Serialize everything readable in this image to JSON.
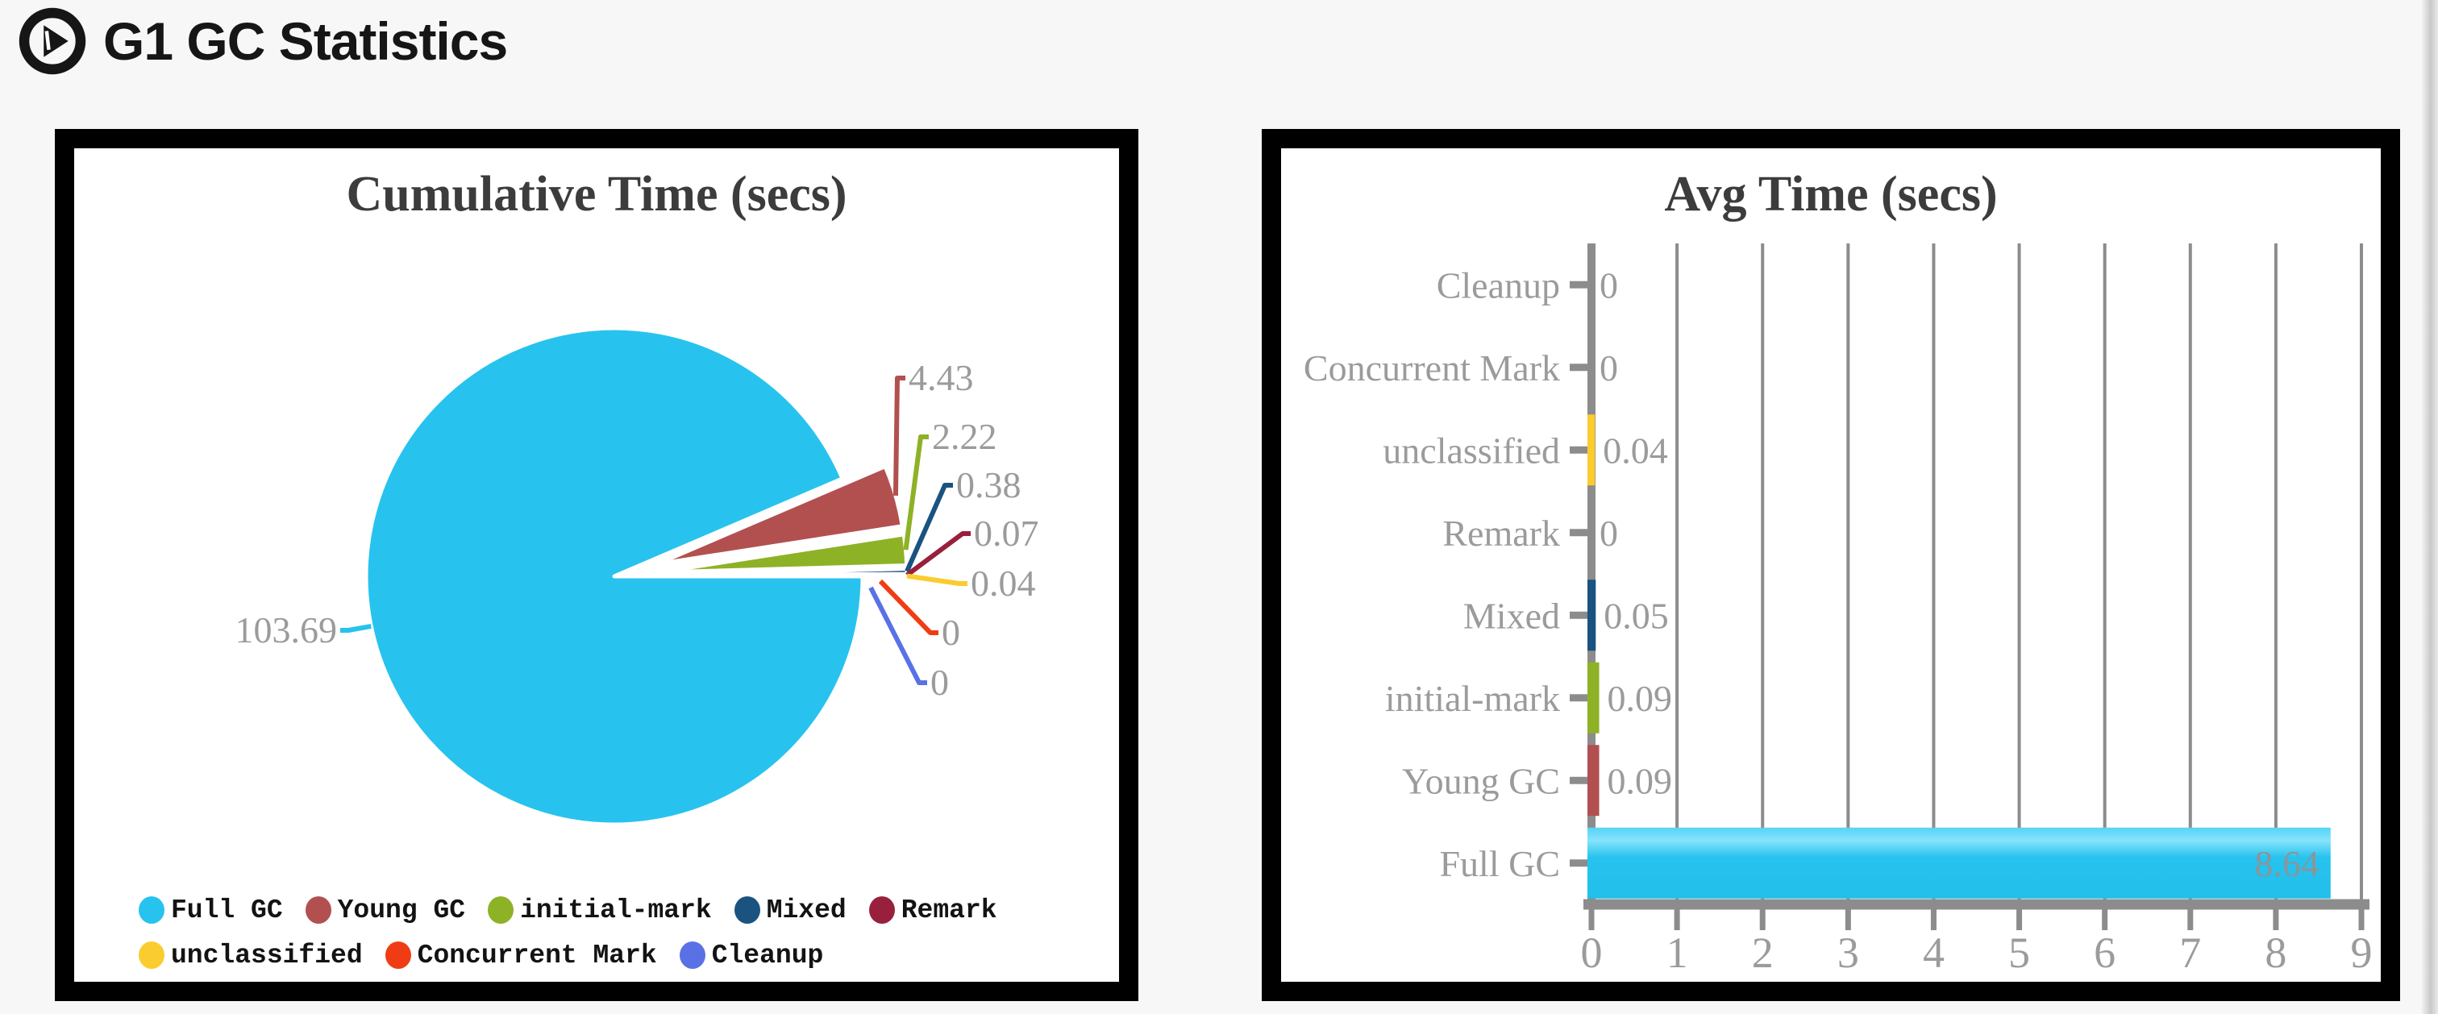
{
  "header": {
    "title": "G1 GC Statistics",
    "icon": "gc-logo"
  },
  "theme": {
    "page_background": "#f7f7f7",
    "panel_border": "#000000",
    "panel_background": "#ffffff",
    "title_color": "#3c3c3c",
    "axis_color": "#8c8c8c",
    "label_color": "#9b9b9b",
    "inside_value_color": "#8a959b"
  },
  "chart_data": [
    {
      "type": "pie",
      "title": "Cumulative Time (secs)",
      "legend_position": "bottom-left",
      "label_color": "#9b9b9b",
      "series": [
        {
          "name": "Full GC",
          "value": 103.69,
          "label": "103.69",
          "color": "#27c3ee"
        },
        {
          "name": "Young GC",
          "value": 4.43,
          "label": "4.43",
          "color": "#b25050"
        },
        {
          "name": "initial-mark",
          "value": 2.22,
          "label": "2.22",
          "color": "#8db226"
        },
        {
          "name": "Mixed",
          "value": 0.38,
          "label": "0.38",
          "color": "#1a5380"
        },
        {
          "name": "Remark",
          "value": 0.07,
          "label": "0.07",
          "color": "#99203c"
        },
        {
          "name": "unclassified",
          "value": 0.04,
          "label": "0.04",
          "color": "#fbcc2f"
        },
        {
          "name": "Concurrent Mark",
          "value": 0,
          "label": "0",
          "color": "#f03c14"
        },
        {
          "name": "Cleanup",
          "value": 0,
          "label": "0",
          "color": "#5a71e6"
        }
      ]
    },
    {
      "type": "bar",
      "orientation": "horizontal",
      "title": "Avg Time (secs)",
      "grid": true,
      "xlim": [
        0,
        9
      ],
      "xticks": [
        "0",
        "1",
        "2",
        "3",
        "4",
        "5",
        "6",
        "7",
        "8",
        "9"
      ],
      "categories": [
        "Cleanup",
        "Concurrent Mark",
        "unclassified",
        "Remark",
        "Mixed",
        "initial-mark",
        "Young GC",
        "Full GC"
      ],
      "values": [
        0,
        0,
        0.04,
        0,
        0.05,
        0.09,
        0.09,
        8.64
      ],
      "value_labels": [
        "0",
        "0",
        "0.04",
        "0",
        "0.05",
        "0.09",
        "0.09",
        "8.64"
      ],
      "colors": [
        "#5a71e6",
        "#f03c14",
        "#fbcc2f",
        "#99203c",
        "#1a5380",
        "#8db226",
        "#b25050",
        "#27c3ee"
      ]
    }
  ]
}
